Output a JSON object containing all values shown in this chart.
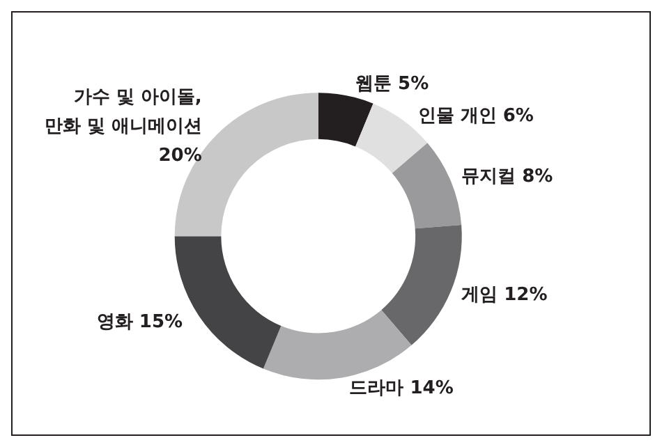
{
  "chart_data": {
    "type": "donut",
    "categories": [
      "웹툰",
      "인물 개인",
      "뮤지컬",
      "게임",
      "드라마",
      "영화",
      "가수 및 아이돌,\n만화 및 애니메이션"
    ],
    "values": [
      5,
      6,
      8,
      12,
      14,
      15,
      20
    ],
    "value_labels": [
      "5%",
      "6%",
      "8%",
      "12%",
      "14%",
      "15%",
      "20%"
    ],
    "colors": [
      "#231f20",
      "#e0e0e1",
      "#9a9a9c",
      "#68686a",
      "#adadaf",
      "#444446",
      "#c8c8c9"
    ],
    "legend": false
  }
}
